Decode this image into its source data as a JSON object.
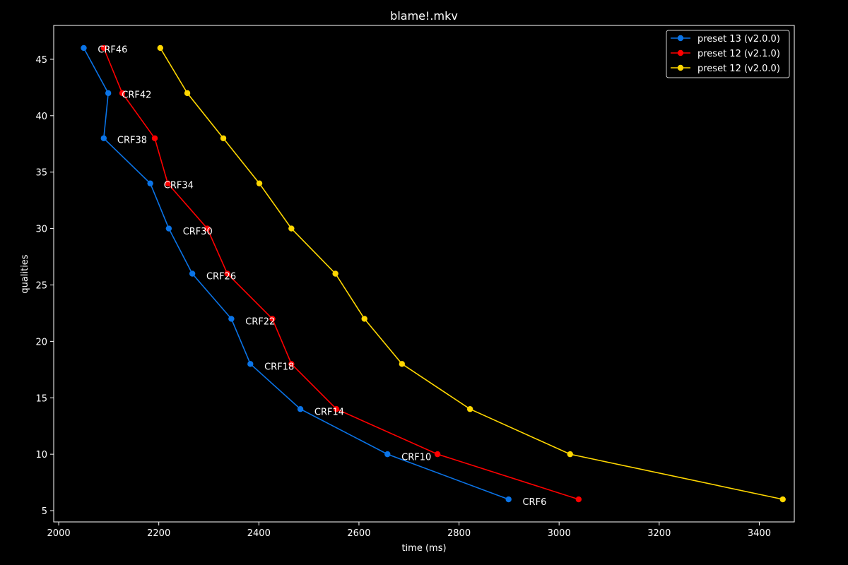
{
  "chart_data": {
    "type": "line",
    "title": "blame!.mkv",
    "xlabel": "time (ms)",
    "ylabel": "qualities",
    "xlim": [
      1990,
      3470
    ],
    "ylim": [
      4,
      48
    ],
    "xticks": [
      2000,
      2200,
      2400,
      2600,
      2800,
      3000,
      3200,
      3400
    ],
    "yticks": [
      5,
      10,
      15,
      20,
      25,
      30,
      35,
      40,
      45
    ],
    "grid": false,
    "legend_position": "top-right",
    "series": [
      {
        "name": "preset 13 (v2.0.0)",
        "color": "#0a74e8",
        "points": [
          {
            "x": 2050,
            "y": 46
          },
          {
            "x": 2099,
            "y": 42
          },
          {
            "x": 2090,
            "y": 38
          },
          {
            "x": 2183,
            "y": 34
          },
          {
            "x": 2220,
            "y": 30
          },
          {
            "x": 2267,
            "y": 26
          },
          {
            "x": 2345,
            "y": 22
          },
          {
            "x": 2383,
            "y": 18
          },
          {
            "x": 2483,
            "y": 14
          },
          {
            "x": 2657,
            "y": 10
          },
          {
            "x": 2899,
            "y": 6
          }
        ]
      },
      {
        "name": "preset 12 (v2.1.0)",
        "color": "#ff0000",
        "points": [
          {
            "x": 2090,
            "y": 46
          },
          {
            "x": 2127,
            "y": 42
          },
          {
            "x": 2192,
            "y": 38
          },
          {
            "x": 2218,
            "y": 34
          },
          {
            "x": 2297,
            "y": 30
          },
          {
            "x": 2337,
            "y": 26
          },
          {
            "x": 2427,
            "y": 22
          },
          {
            "x": 2465,
            "y": 18
          },
          {
            "x": 2555,
            "y": 14
          },
          {
            "x": 2757,
            "y": 10
          },
          {
            "x": 3039,
            "y": 6
          }
        ]
      },
      {
        "name": "preset 12 (v2.0.0)",
        "color": "#ffd700",
        "points": [
          {
            "x": 2203,
            "y": 46
          },
          {
            "x": 2257,
            "y": 42
          },
          {
            "x": 2329,
            "y": 38
          },
          {
            "x": 2401,
            "y": 34
          },
          {
            "x": 2465,
            "y": 30
          },
          {
            "x": 2553,
            "y": 26
          },
          {
            "x": 2611,
            "y": 22
          },
          {
            "x": 2686,
            "y": 18
          },
          {
            "x": 2822,
            "y": 14
          },
          {
            "x": 3022,
            "y": 10
          },
          {
            "x": 3447,
            "y": 6
          }
        ]
      }
    ],
    "annotations": [
      {
        "text": "CRF46",
        "x": 2078,
        "y": 45.9
      },
      {
        "text": "CRF42",
        "x": 2126,
        "y": 41.9
      },
      {
        "text": "CRF38",
        "x": 2117,
        "y": 37.9
      },
      {
        "text": "CRF34",
        "x": 2210,
        "y": 33.9
      },
      {
        "text": "CRF30",
        "x": 2248,
        "y": 29.8
      },
      {
        "text": "CRF26",
        "x": 2295,
        "y": 25.8
      },
      {
        "text": "CRF22",
        "x": 2373,
        "y": 21.8
      },
      {
        "text": "CRF18",
        "x": 2411,
        "y": 17.8
      },
      {
        "text": "CRF14",
        "x": 2511,
        "y": 13.8
      },
      {
        "text": "CRF10",
        "x": 2685,
        "y": 9.8
      },
      {
        "text": "CRF6",
        "x": 2927,
        "y": 5.8
      }
    ]
  }
}
